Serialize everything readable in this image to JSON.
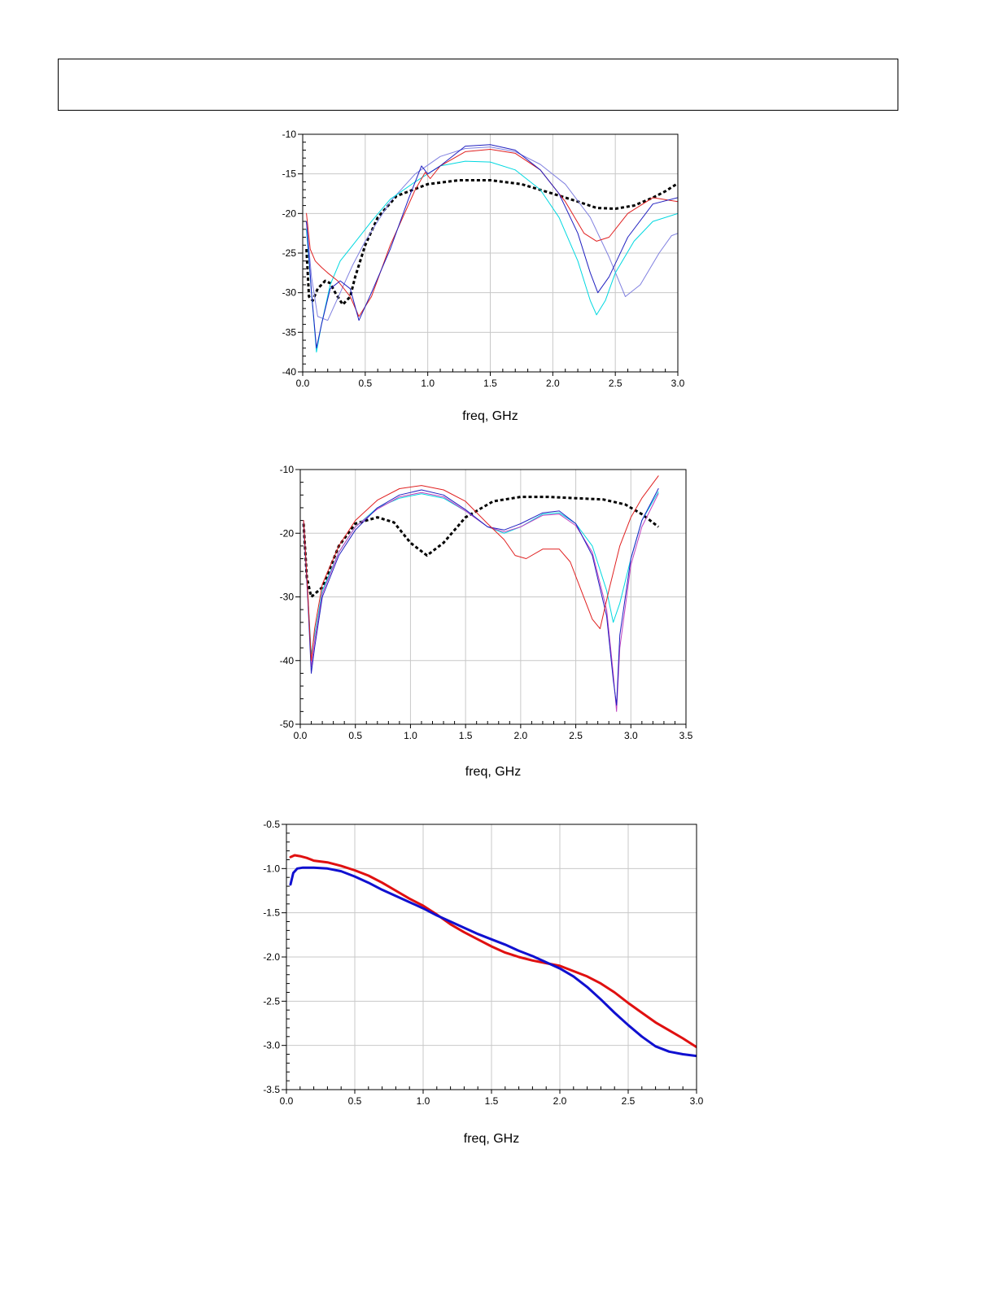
{
  "header": {
    "title": ""
  },
  "charts": [
    {
      "chart_data": {
        "type": "line",
        "xlabel": "freq, GHz",
        "ylabel": "",
        "xlim": [
          0.0,
          3.0
        ],
        "ylim": [
          -40,
          -10
        ],
        "x_ticks": [
          0.0,
          0.5,
          1.0,
          1.5,
          2.0,
          2.5,
          3.0
        ],
        "x_tick_labels": [
          "0.0",
          "0.5",
          "1.0",
          "1.5",
          "2.0",
          "2.5",
          "3.0"
        ],
        "y_ticks": [
          -40,
          -35,
          -30,
          -25,
          -20,
          -15,
          -10
        ],
        "y_tick_labels": [
          "-40",
          "-35",
          "-30",
          "-25",
          "-20",
          "-15",
          "-10"
        ],
        "grid": true,
        "series": [
          {
            "color": "#000000",
            "dashed": true,
            "width": 3,
            "x": [
              0.03,
              0.05,
              0.08,
              0.12,
              0.18,
              0.22,
              0.26,
              0.32,
              0.38,
              0.42,
              0.5,
              0.6,
              0.75,
              1.0,
              1.25,
              1.5,
              1.75,
              2.0,
              2.2,
              2.35,
              2.5,
              2.65,
              2.8,
              2.9,
              3.0
            ],
            "y": [
              -24.5,
              -30.5,
              -31.0,
              -29.5,
              -28.5,
              -28.8,
              -30.0,
              -31.5,
              -30.5,
              -28.0,
              -24.0,
              -20.5,
              -17.8,
              -16.3,
              -15.8,
              -15.8,
              -16.3,
              -17.5,
              -18.5,
              -19.3,
              -19.4,
              -19.0,
              -18.0,
              -17.2,
              -16.2
            ]
          },
          {
            "color": "#8080e0",
            "dashed": false,
            "width": 1,
            "x": [
              0.03,
              0.07,
              0.12,
              0.2,
              0.3,
              0.4,
              0.5,
              0.7,
              0.9,
              1.1,
              1.3,
              1.5,
              1.7,
              1.9,
              2.1,
              2.3,
              2.45,
              2.58,
              2.7,
              2.85,
              2.95,
              3.0
            ],
            "y": [
              -21.0,
              -28.0,
              -33.0,
              -33.5,
              -30.0,
              -26.5,
              -23.5,
              -18.5,
              -15.0,
              -12.8,
              -11.8,
              -11.6,
              -12.2,
              -13.8,
              -16.3,
              -20.5,
              -25.5,
              -30.5,
              -29.0,
              -25.0,
              -22.8,
              -22.5
            ]
          },
          {
            "color": "#00d8e0",
            "dashed": false,
            "width": 1,
            "x": [
              0.03,
              0.07,
              0.11,
              0.15,
              0.22,
              0.3,
              0.4,
              0.55,
              0.7,
              0.9,
              1.1,
              1.3,
              1.5,
              1.7,
              1.9,
              2.05,
              2.2,
              2.3,
              2.35,
              2.42,
              2.5,
              2.65,
              2.8,
              3.0
            ],
            "y": [
              -22.0,
              -30.0,
              -37.5,
              -34.0,
              -29.0,
              -26.0,
              -24.0,
              -21.0,
              -18.2,
              -16.0,
              -14.0,
              -13.4,
              -13.5,
              -14.5,
              -17.0,
              -20.5,
              -26.0,
              -31.0,
              -32.8,
              -31.0,
              -27.5,
              -23.5,
              -21.0,
              -20.0
            ]
          },
          {
            "color": "#e02020",
            "dashed": false,
            "width": 1,
            "x": [
              0.03,
              0.06,
              0.1,
              0.15,
              0.2,
              0.28,
              0.38,
              0.45,
              0.55,
              0.7,
              0.9,
              0.98,
              1.02,
              1.1,
              1.3,
              1.5,
              1.7,
              1.9,
              2.1,
              2.25,
              2.35,
              2.45,
              2.6,
              2.8,
              3.0
            ],
            "y": [
              -20.0,
              -24.5,
              -26.0,
              -26.8,
              -27.5,
              -28.5,
              -30.5,
              -33.0,
              -30.5,
              -24.0,
              -17.0,
              -14.8,
              -15.6,
              -14.0,
              -12.2,
              -11.9,
              -12.4,
              -14.5,
              -18.5,
              -22.5,
              -23.5,
              -23.0,
              -20.0,
              -18.0,
              -18.5
            ]
          },
          {
            "color": "#2020c0",
            "dashed": false,
            "width": 1,
            "x": [
              0.03,
              0.07,
              0.11,
              0.15,
              0.22,
              0.3,
              0.38,
              0.45,
              0.55,
              0.7,
              0.85,
              0.95,
              1.0,
              1.1,
              1.3,
              1.5,
              1.7,
              1.9,
              2.05,
              2.2,
              2.3,
              2.36,
              2.45,
              2.6,
              2.8,
              3.0
            ],
            "y": [
              -21.0,
              -30.0,
              -37.0,
              -34.0,
              -29.5,
              -28.5,
              -29.5,
              -33.5,
              -30.0,
              -24.5,
              -18.0,
              -14.0,
              -15.0,
              -14.0,
              -11.5,
              -11.3,
              -12.0,
              -14.5,
              -17.5,
              -22.5,
              -27.5,
              -30.0,
              -28.0,
              -23.0,
              -18.8,
              -18.0
            ]
          }
        ]
      }
    },
    {
      "chart_data": {
        "type": "line",
        "xlabel": "freq, GHz",
        "ylabel": "",
        "xlim": [
          0.0,
          3.5
        ],
        "ylim": [
          -50,
          -10
        ],
        "x_ticks": [
          0.0,
          0.5,
          1.0,
          1.5,
          2.0,
          2.5,
          3.0,
          3.5
        ],
        "x_tick_labels": [
          "0.0",
          "0.5",
          "1.0",
          "1.5",
          "2.0",
          "2.5",
          "3.0",
          "3.5"
        ],
        "y_ticks": [
          -50,
          -40,
          -30,
          -20,
          -10
        ],
        "y_tick_labels": [
          "-50",
          "-40",
          "-30",
          "-20",
          "-10"
        ],
        "grid": true,
        "series": [
          {
            "color": "#000000",
            "dashed": true,
            "width": 3,
            "x": [
              0.03,
              0.06,
              0.1,
              0.2,
              0.35,
              0.5,
              0.7,
              0.85,
              1.0,
              1.15,
              1.3,
              1.5,
              1.75,
              2.0,
              2.25,
              2.5,
              2.75,
              2.95,
              3.1,
              3.25
            ],
            "y": [
              -18.5,
              -27.0,
              -30.0,
              -28.5,
              -22.0,
              -18.5,
              -17.5,
              -18.3,
              -21.5,
              -23.5,
              -21.5,
              -17.5,
              -15.0,
              -14.3,
              -14.3,
              -14.5,
              -14.7,
              -15.5,
              -17.0,
              -19.0
            ]
          },
          {
            "color": "#00d8e0",
            "dashed": false,
            "width": 1,
            "x": [
              0.03,
              0.07,
              0.1,
              0.13,
              0.2,
              0.35,
              0.5,
              0.7,
              0.9,
              1.1,
              1.3,
              1.5,
              1.7,
              1.85,
              2.0,
              2.2,
              2.35,
              2.5,
              2.65,
              2.78,
              2.84,
              2.9,
              3.0,
              3.1,
              3.25
            ],
            "y": [
              -18.0,
              -30.0,
              -39.0,
              -36.0,
              -29.0,
              -23.0,
              -19.0,
              -16.0,
              -14.5,
              -13.8,
              -14.5,
              -16.5,
              -19.0,
              -20.0,
              -19.0,
              -17.0,
              -16.8,
              -18.5,
              -22.0,
              -29.0,
              -34.0,
              -31.0,
              -24.0,
              -18.0,
              -13.5
            ]
          },
          {
            "color": "#c040c0",
            "dashed": false,
            "width": 1,
            "x": [
              0.03,
              0.07,
              0.1,
              0.13,
              0.2,
              0.35,
              0.5,
              0.7,
              0.9,
              1.1,
              1.3,
              1.5,
              1.7,
              1.85,
              2.0,
              2.2,
              2.35,
              2.5,
              2.65,
              2.78,
              2.84,
              2.87,
              2.9,
              3.0,
              3.1,
              3.25
            ],
            "y": [
              -18.0,
              -30.0,
              -41.0,
              -37.0,
              -29.5,
              -23.0,
              -19.0,
              -16.2,
              -14.3,
              -13.6,
              -14.3,
              -16.5,
              -19.0,
              -19.8,
              -19.0,
              -17.2,
              -17.0,
              -18.8,
              -23.0,
              -32.0,
              -42.0,
              -48.0,
              -38.0,
              -25.0,
              -19.0,
              -13.8
            ]
          },
          {
            "color": "#2020c0",
            "dashed": false,
            "width": 1,
            "x": [
              0.03,
              0.07,
              0.1,
              0.13,
              0.2,
              0.35,
              0.5,
              0.7,
              0.9,
              1.1,
              1.3,
              1.5,
              1.7,
              1.85,
              2.0,
              2.2,
              2.35,
              2.5,
              2.65,
              2.78,
              2.84,
              2.87,
              2.9,
              3.0,
              3.1,
              3.25
            ],
            "y": [
              -18.5,
              -31.0,
              -42.0,
              -38.0,
              -30.0,
              -23.5,
              -19.5,
              -16.0,
              -14.0,
              -13.2,
              -14.0,
              -16.3,
              -19.0,
              -19.5,
              -18.5,
              -16.8,
              -16.5,
              -18.5,
              -23.5,
              -33.0,
              -43.0,
              -47.0,
              -36.0,
              -24.0,
              -18.0,
              -13.0
            ]
          },
          {
            "color": "#e02020",
            "dashed": false,
            "width": 1,
            "x": [
              0.03,
              0.07,
              0.1,
              0.13,
              0.2,
              0.35,
              0.5,
              0.7,
              0.9,
              1.1,
              1.3,
              1.5,
              1.7,
              1.85,
              1.95,
              2.05,
              2.2,
              2.35,
              2.45,
              2.55,
              2.65,
              2.72,
              2.8,
              2.9,
              3.0,
              3.1,
              3.25
            ],
            "y": [
              -18.0,
              -30.0,
              -40.0,
              -35.0,
              -28.0,
              -22.0,
              -18.0,
              -14.8,
              -13.0,
              -12.5,
              -13.2,
              -15.0,
              -18.5,
              -21.0,
              -23.5,
              -24.0,
              -22.5,
              -22.5,
              -24.5,
              -29.0,
              -33.5,
              -35.0,
              -29.0,
              -22.0,
              -17.5,
              -14.5,
              -11.0
            ]
          }
        ]
      }
    },
    {
      "chart_data": {
        "type": "line",
        "xlabel": "freq, GHz",
        "ylabel": "",
        "xlim": [
          0.0,
          3.0
        ],
        "ylim": [
          -3.5,
          -0.5
        ],
        "x_ticks": [
          0.0,
          0.5,
          1.0,
          1.5,
          2.0,
          2.5,
          3.0
        ],
        "x_tick_labels": [
          "0.0",
          "0.5",
          "1.0",
          "1.5",
          "2.0",
          "2.5",
          "3.0"
        ],
        "y_ticks": [
          -3.5,
          -3.0,
          -2.5,
          -2.0,
          -1.5,
          -1.0,
          -0.5
        ],
        "y_tick_labels": [
          "-3.5",
          "-3.0",
          "-2.5",
          "-2.0",
          "-1.5",
          "-1.0",
          "-0.5"
        ],
        "grid": true,
        "series": [
          {
            "color": "#e01010",
            "dashed": false,
            "width": 3,
            "x": [
              0.03,
              0.06,
              0.1,
              0.15,
              0.2,
              0.3,
              0.4,
              0.5,
              0.6,
              0.7,
              0.8,
              0.9,
              1.0,
              1.1,
              1.2,
              1.3,
              1.4,
              1.5,
              1.6,
              1.7,
              1.8,
              1.9,
              2.0,
              2.1,
              2.2,
              2.3,
              2.4,
              2.5,
              2.6,
              2.7,
              2.8,
              2.9,
              3.0
            ],
            "y": [
              -0.87,
              -0.85,
              -0.86,
              -0.88,
              -0.91,
              -0.93,
              -0.97,
              -1.02,
              -1.08,
              -1.16,
              -1.25,
              -1.34,
              -1.42,
              -1.52,
              -1.63,
              -1.72,
              -1.8,
              -1.88,
              -1.95,
              -2.0,
              -2.04,
              -2.07,
              -2.1,
              -2.16,
              -2.22,
              -2.3,
              -2.4,
              -2.52,
              -2.63,
              -2.74,
              -2.83,
              -2.92,
              -3.02
            ]
          },
          {
            "color": "#1010d0",
            "dashed": false,
            "width": 3,
            "x": [
              0.03,
              0.05,
              0.08,
              0.12,
              0.2,
              0.3,
              0.4,
              0.5,
              0.6,
              0.7,
              0.8,
              0.9,
              1.0,
              1.1,
              1.2,
              1.3,
              1.4,
              1.5,
              1.6,
              1.7,
              1.8,
              1.9,
              2.0,
              2.1,
              2.2,
              2.3,
              2.4,
              2.5,
              2.6,
              2.7,
              2.8,
              2.9,
              3.0
            ],
            "y": [
              -1.18,
              -1.05,
              -1.0,
              -0.99,
              -0.99,
              -1.0,
              -1.03,
              -1.09,
              -1.16,
              -1.24,
              -1.31,
              -1.38,
              -1.45,
              -1.53,
              -1.6,
              -1.67,
              -1.74,
              -1.8,
              -1.86,
              -1.93,
              -1.99,
              -2.06,
              -2.13,
              -2.22,
              -2.34,
              -2.48,
              -2.63,
              -2.77,
              -2.9,
              -3.01,
              -3.07,
              -3.1,
              -3.12
            ]
          }
        ]
      }
    }
  ]
}
